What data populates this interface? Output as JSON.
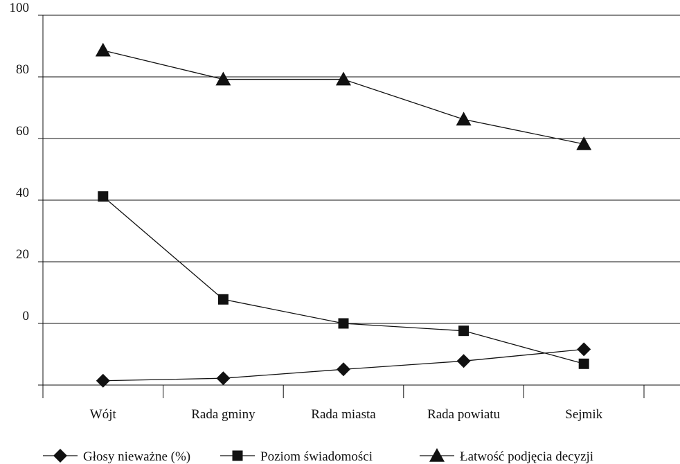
{
  "chart_data": {
    "type": "line",
    "categories": [
      "Wójt",
      "Rada gminy",
      "Rada miasta",
      "Rada powiatu",
      "Sejmik"
    ],
    "ylim": [
      -20,
      100
    ],
    "yticks": [
      "100",
      "80",
      "60",
      "40",
      "20",
      "0"
    ],
    "ytick_values": [
      100,
      80,
      60,
      40,
      20,
      0
    ],
    "grid": true,
    "legend_position": "bottom",
    "series": [
      {
        "name": "Głosy nieważne (%)",
        "marker": "diamond",
        "values": [
          -18.6,
          -17.8,
          -14.9,
          -12.2,
          -8.4
        ]
      },
      {
        "name": "Poziom świadomości",
        "marker": "square",
        "values": [
          41.2,
          7.8,
          0,
          -2.4,
          -13.1
        ]
      },
      {
        "name": "Łatwość podjęcia decyzji",
        "marker": "triangle",
        "values": [
          88.6,
          79.2,
          79.2,
          66.2,
          58.2
        ]
      }
    ],
    "color": "#111111"
  }
}
